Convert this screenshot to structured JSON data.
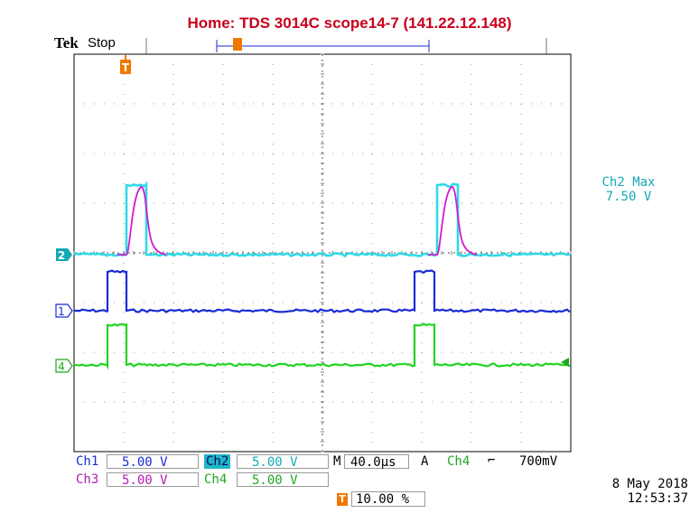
{
  "window": {
    "title": "Home:  TDS 3014C  scope14-7  (141.22.12.148)"
  },
  "header": {
    "brand": "Tek",
    "acq_state": "Stop"
  },
  "markers": {
    "trigger_symbol": "T",
    "ch1": "1",
    "ch2": "2",
    "ch4": "4"
  },
  "readouts": {
    "ch2_max_label": "Ch2 Max",
    "ch2_max_value": "7.50 V"
  },
  "channels": [
    {
      "label": "Ch1",
      "scale": "5.00 V"
    },
    {
      "label": "Ch2",
      "scale": "5.00 V"
    },
    {
      "label": "Ch3",
      "scale": "5.00 V"
    },
    {
      "label": "Ch4",
      "scale": "5.00 V"
    }
  ],
  "timebase": {
    "prefix": "M",
    "value": "40.0µs"
  },
  "trigger": {
    "mode": "A",
    "source": "Ch4",
    "slope_symbol": "⌐",
    "level": "700mV",
    "position": "10.00 %"
  },
  "timestamp": {
    "date": "8 May 2018",
    "time": "12:53:37"
  },
  "colors": {
    "ch1": "#1a2bd8",
    "ch2": "#13a9b8",
    "ch3": "#d21ad2",
    "ch4": "#21d421",
    "title": "#c8001e",
    "trigger": "#f07800"
  }
}
